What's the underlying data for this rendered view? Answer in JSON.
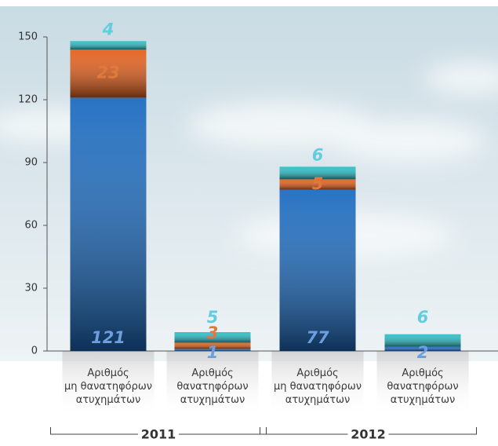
{
  "chart_data": {
    "type": "stacked-bar",
    "categories": [
      "Αριθμός\nμη θανατηφόρων\nατυχημάτων",
      "Αριθμός\nθανατηφόρων\nατυχημάτων",
      "Αριθμός\nμη θανατηφόρων\nατυχημάτων",
      "Αριθμός\nθανατηφόρων\nατυχημάτων"
    ],
    "groups": [
      "2011",
      "2012"
    ],
    "series": [
      {
        "color": "#1d6cc0",
        "label_color": "#6d9fe0",
        "values": [
          121,
          1,
          77,
          2
        ]
      },
      {
        "color": "#e4601c",
        "label_color": "#e07a3c",
        "values": [
          23,
          3,
          5,
          null
        ]
      },
      {
        "color": "#2bbfc6",
        "label_color": "#62cde0",
        "values": [
          4,
          5,
          6,
          6
        ]
      }
    ],
    "ylim": [
      0,
      150
    ],
    "yticks": [
      0,
      30,
      60,
      90,
      120,
      150
    ]
  }
}
